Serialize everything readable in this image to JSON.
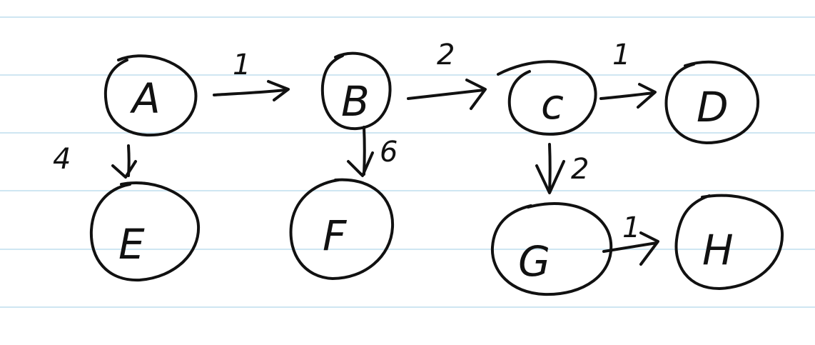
{
  "diagram": {
    "paper": {
      "background": "#ffffff",
      "rule_color": "#cfe6f2",
      "ink_color": "#111111"
    },
    "nodes": [
      {
        "id": "A",
        "label": "A"
      },
      {
        "id": "B",
        "label": "B"
      },
      {
        "id": "C",
        "label": "c"
      },
      {
        "id": "D",
        "label": "D"
      },
      {
        "id": "E",
        "label": "E"
      },
      {
        "id": "F",
        "label": "F"
      },
      {
        "id": "G",
        "label": "G"
      },
      {
        "id": "H",
        "label": "H"
      }
    ],
    "edges": [
      {
        "from": "A",
        "to": "B",
        "label": "1"
      },
      {
        "from": "B",
        "to": "C",
        "label": "2"
      },
      {
        "from": "C",
        "to": "D",
        "label": "1"
      },
      {
        "from": "A",
        "to": "E",
        "label": "4"
      },
      {
        "from": "B",
        "to": "F",
        "label": "6"
      },
      {
        "from": "C",
        "to": "G",
        "label": "2"
      },
      {
        "from": "G",
        "to": "H",
        "label": "1"
      }
    ]
  }
}
